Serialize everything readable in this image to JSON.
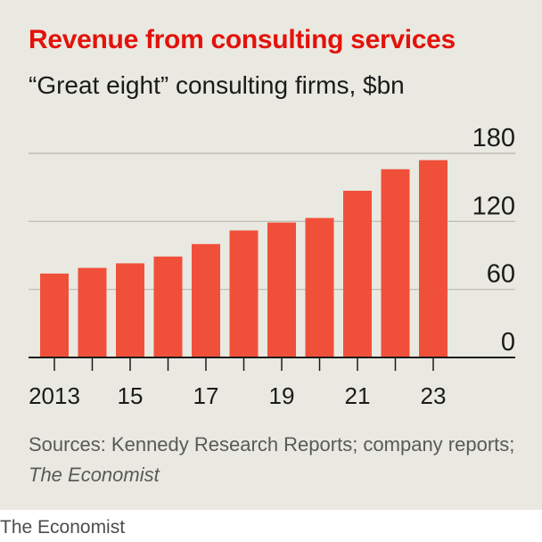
{
  "chart_data": {
    "type": "bar",
    "title": "Revenue from consulting services",
    "subtitle": "“Great eight” consulting firms, $bn",
    "categories": [
      "2013",
      "2014",
      "2015",
      "2016",
      "2017",
      "2018",
      "2019",
      "2020",
      "2021",
      "2022",
      "2023"
    ],
    "x_tick_labels": [
      "2013",
      "",
      "15",
      "",
      "17",
      "",
      "19",
      "",
      "21",
      "",
      "23"
    ],
    "values": [
      74,
      79,
      83,
      89,
      100,
      112,
      119,
      123,
      147,
      166,
      174
    ],
    "ylim": [
      0,
      180
    ],
    "yticks": [
      0,
      60,
      120,
      180
    ],
    "ytick_labels": [
      "0",
      "60",
      "120",
      "180"
    ],
    "y_axis_side": "right",
    "grid": true,
    "bar_color": "#f0503a",
    "axis_color": "#1a1a1a",
    "grid_color": "#b7b7b0"
  },
  "source": {
    "prefix": "Sources: Kennedy Research Reports; company reports; ",
    "publication": "The Economist"
  },
  "footer": {
    "credit": "The Economist"
  },
  "colors": {
    "title": "#e3120b",
    "background": "#e9e9e1"
  }
}
